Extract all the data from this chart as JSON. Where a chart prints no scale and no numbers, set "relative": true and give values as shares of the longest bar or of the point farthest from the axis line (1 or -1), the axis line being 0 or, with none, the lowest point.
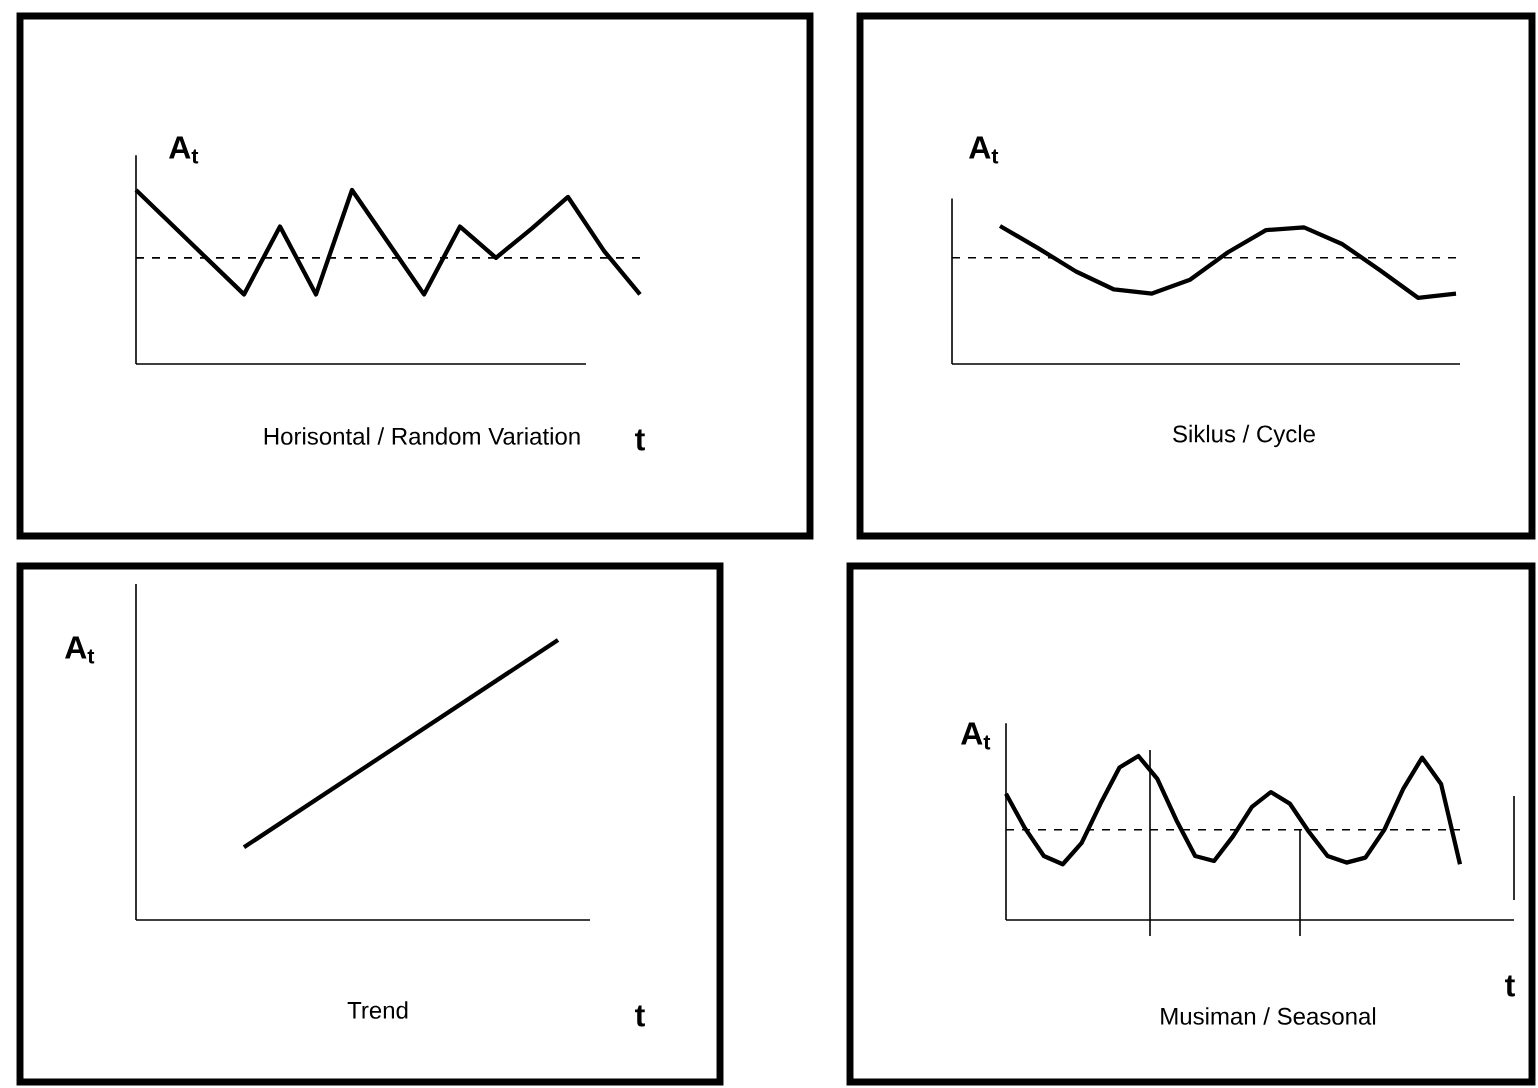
{
  "chart_data": [
    {
      "type": "line",
      "relative": true,
      "ylabel": "A$_{t}$",
      "xlabel": "t",
      "annotations": [
        "Horisontal / Random Variation"
      ],
      "color": "#000000",
      "categories": [
        null,
        null,
        null,
        null,
        null,
        null,
        null,
        null,
        null,
        null,
        null,
        null,
        null,
        null,
        null
      ],
      "values": [
        1,
        0.8,
        0.6,
        0.4,
        0.79,
        0.4,
        1,
        0.7,
        0.4,
        0.79,
        0.61,
        0.78,
        0.96,
        0.65,
        0.4
      ],
      "ref_lines": [
        {
          "axis": "y",
          "value": 0.61,
          "line_style": "dashed"
        }
      ]
    },
    {
      "type": "line",
      "relative": true,
      "ylabel": "A$_{t}$",
      "annotations": [
        "Siklus / Cycle"
      ],
      "color": "#000000",
      "categories": [
        null,
        null,
        null,
        null,
        null,
        null,
        null,
        null,
        null,
        null,
        null,
        null,
        null
      ],
      "values": [
        1,
        0.84,
        0.67,
        0.54,
        0.51,
        0.61,
        0.81,
        0.97,
        0.99,
        0.87,
        0.68,
        0.48,
        0.51
      ],
      "ref_lines": [
        {
          "axis": "y",
          "value": 0.77,
          "line_style": "dashed"
        }
      ]
    },
    {
      "type": "line",
      "relative": true,
      "ylabel": "A$_{t}$",
      "xlabel": "t",
      "annotations": [
        "Trend"
      ],
      "color": "#000000",
      "categories": [
        null,
        null
      ],
      "values": [
        0.26,
        1
      ]
    },
    {
      "type": "line",
      "relative": true,
      "ylabel": "A$_{t}$",
      "xlabel": "t",
      "annotations": [
        "Musiman / Seasonal"
      ],
      "color": "#000000",
      "categories": [
        null,
        null,
        null,
        null,
        null,
        null,
        null,
        null,
        null,
        null,
        null,
        null,
        null,
        null,
        null,
        null,
        null,
        null,
        null,
        null,
        null,
        null,
        null,
        null,
        null
      ],
      "values": [
        0.77,
        0.56,
        0.39,
        0.34,
        0.47,
        0.71,
        0.93,
        1,
        0.86,
        0.61,
        0.39,
        0.36,
        0.51,
        0.69,
        0.78,
        0.71,
        0.54,
        0.39,
        0.35,
        0.38,
        0.55,
        0.8,
        0.99,
        0.83,
        0.34
      ],
      "ref_lines": [
        {
          "axis": "y",
          "value": 0.55,
          "line_style": "dashed"
        }
      ]
    }
  ]
}
